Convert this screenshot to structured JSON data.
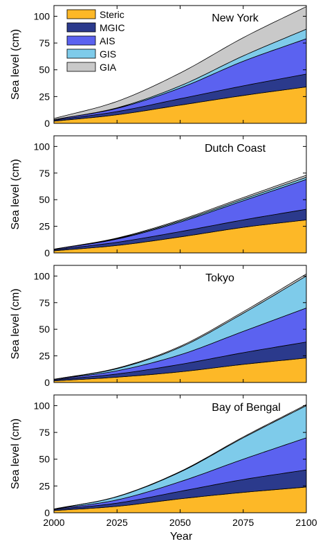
{
  "figure": {
    "xlabel": "Year",
    "ylabel": "Sea level (cm)",
    "colors": {
      "Steric": "#fdb827",
      "MGIC": "#2b3a8c",
      "AIS": "#5b62f0",
      "GIS": "#7ecbea",
      "GIA": "#c9c9c9"
    }
  },
  "chart_data": [
    {
      "type": "area",
      "title": "New York",
      "x": [
        2000,
        2025,
        2050,
        2075,
        2100
      ],
      "xlim": [
        2000,
        2100
      ],
      "ylim": [
        0,
        110
      ],
      "yticks": [
        0,
        25,
        50,
        75,
        100
      ],
      "xticks": [
        2000,
        2025,
        2050,
        2075,
        2100
      ],
      "xlabel": "",
      "ylabel": "Sea level (cm)",
      "legend": "top-left",
      "stacked": true,
      "series": [
        {
          "name": "Steric",
          "values": [
            2,
            8,
            17,
            26,
            34
          ]
        },
        {
          "name": "MGIC",
          "values": [
            1,
            3,
            6,
            9,
            12
          ]
        },
        {
          "name": "AIS",
          "values": [
            0.5,
            3,
            10,
            23,
            33
          ]
        },
        {
          "name": "GIS",
          "values": [
            0,
            0.5,
            2,
            5,
            9
          ]
        },
        {
          "name": "GIA",
          "values": [
            1,
            6,
            12,
            17,
            21
          ]
        }
      ]
    },
    {
      "type": "area",
      "title": "Dutch Coast",
      "x": [
        2000,
        2025,
        2050,
        2075,
        2100
      ],
      "xlim": [
        2000,
        2100
      ],
      "ylim": [
        0,
        110
      ],
      "yticks": [
        0,
        25,
        50,
        75,
        100
      ],
      "xticks": [
        2000,
        2025,
        2050,
        2075,
        2100
      ],
      "xlabel": "",
      "ylabel": "Sea level (cm)",
      "stacked": true,
      "series": [
        {
          "name": "Steric",
          "values": [
            2,
            7,
            15,
            24,
            31
          ]
        },
        {
          "name": "MGIC",
          "values": [
            1,
            3,
            5,
            7,
            10
          ]
        },
        {
          "name": "AIS",
          "values": [
            0.5,
            3,
            9,
            18,
            28
          ]
        },
        {
          "name": "GIS",
          "values": [
            0,
            0.5,
            1,
            1.5,
            2
          ]
        },
        {
          "name": "GIA",
          "values": [
            0,
            0.5,
            1,
            1.5,
            2
          ]
        }
      ]
    },
    {
      "type": "area",
      "title": "Tokyo",
      "x": [
        2000,
        2025,
        2050,
        2075,
        2100
      ],
      "xlim": [
        2000,
        2100
      ],
      "ylim": [
        0,
        110
      ],
      "yticks": [
        0,
        25,
        50,
        75,
        100
      ],
      "xticks": [
        2000,
        2025,
        2050,
        2075,
        2100
      ],
      "xlabel": "",
      "ylabel": "Sea level (cm)",
      "stacked": true,
      "series": [
        {
          "name": "Steric",
          "values": [
            1.5,
            5,
            10,
            17,
            23
          ]
        },
        {
          "name": "MGIC",
          "values": [
            1,
            3,
            7,
            11,
            15
          ]
        },
        {
          "name": "AIS",
          "values": [
            0.5,
            3,
            9,
            20,
            32
          ]
        },
        {
          "name": "GIS",
          "values": [
            0,
            2,
            7,
            17,
            30
          ]
        },
        {
          "name": "GIA",
          "values": [
            0,
            0.5,
            1,
            1.5,
            2
          ]
        }
      ]
    },
    {
      "type": "area",
      "title": "Bay of Bengal",
      "x": [
        2000,
        2025,
        2050,
        2075,
        2100
      ],
      "xlim": [
        2000,
        2100
      ],
      "ylim": [
        0,
        110
      ],
      "yticks": [
        0,
        25,
        50,
        75,
        100
      ],
      "xticks": [
        2000,
        2025,
        2050,
        2075,
        2100
      ],
      "xlabel": "Year",
      "ylabel": "Sea level (cm)",
      "stacked": true,
      "series": [
        {
          "name": "Steric",
          "values": [
            2,
            6,
            13,
            19,
            24
          ]
        },
        {
          "name": "MGIC",
          "values": [
            1,
            3,
            7,
            12,
            16
          ]
        },
        {
          "name": "AIS",
          "values": [
            0.5,
            3,
            9,
            19,
            30
          ]
        },
        {
          "name": "GIS",
          "values": [
            0,
            3,
            9,
            20,
            30
          ]
        },
        {
          "name": "GIA",
          "values": [
            0,
            0.2,
            0.5,
            0.8,
            1
          ]
        }
      ]
    }
  ]
}
